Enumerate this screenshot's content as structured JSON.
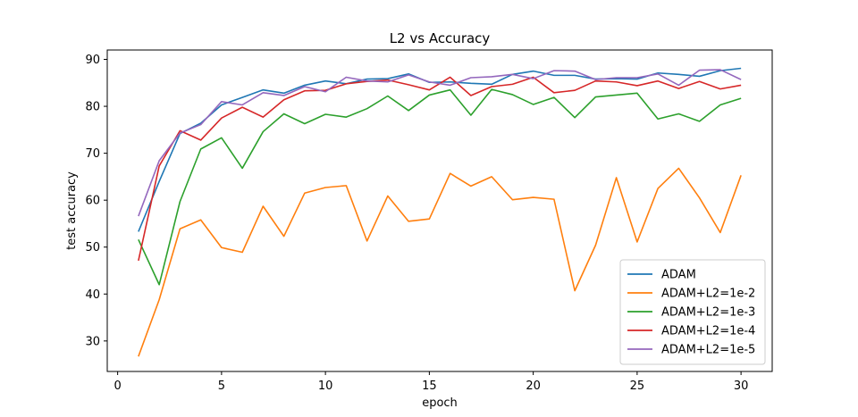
{
  "chart_data": {
    "type": "line",
    "title": "L2 vs Accuracy",
    "xlabel": "epoch",
    "ylabel": "test accuracy",
    "xlim": [
      -0.5,
      31.5
    ],
    "ylim": [
      23.5,
      92
    ],
    "xticks": [
      0,
      5,
      10,
      15,
      20,
      25,
      30
    ],
    "yticks": [
      30,
      40,
      50,
      60,
      70,
      80,
      90
    ],
    "grid": false,
    "legend_position": "lower-right",
    "x": [
      1,
      2,
      3,
      4,
      5,
      6,
      7,
      8,
      9,
      10,
      11,
      12,
      13,
      14,
      15,
      16,
      17,
      18,
      19,
      20,
      21,
      22,
      23,
      24,
      25,
      26,
      27,
      28,
      29,
      30
    ],
    "series": [
      {
        "name": "ADAM",
        "color": "#1f77b4",
        "values": [
          53.3,
          64.0,
          74.2,
          76.4,
          80.3,
          81.9,
          83.5,
          82.8,
          84.5,
          85.4,
          84.8,
          85.8,
          85.9,
          86.9,
          85.1,
          85.2,
          84.9,
          84.7,
          86.8,
          87.5,
          86.6,
          86.6,
          85.8,
          85.9,
          85.8,
          87.1,
          86.8,
          86.4,
          87.6,
          88.1
        ]
      },
      {
        "name": "ADAM+L2=1e-2",
        "color": "#ff7f0e",
        "values": [
          26.7,
          38.8,
          53.9,
          55.8,
          49.9,
          48.9,
          58.7,
          52.3,
          61.5,
          62.7,
          63.1,
          51.3,
          60.9,
          55.5,
          56.0,
          65.7,
          63.0,
          65.0,
          60.1,
          60.6,
          60.2,
          40.7,
          50.4,
          64.8,
          51.1,
          62.5,
          66.8,
          60.5,
          53.1,
          65.3
        ]
      },
      {
        "name": "ADAM+L2=1e-3",
        "color": "#2ca02c",
        "values": [
          51.6,
          42.0,
          59.7,
          70.9,
          73.3,
          66.8,
          74.6,
          78.4,
          76.3,
          78.3,
          77.7,
          79.5,
          82.2,
          79.1,
          82.4,
          83.5,
          78.1,
          83.6,
          82.5,
          80.4,
          81.9,
          77.6,
          82.0,
          82.4,
          82.8,
          77.3,
          78.4,
          76.8,
          80.3,
          81.7
        ]
      },
      {
        "name": "ADAM+L2=1e-4",
        "color": "#d62728",
        "values": [
          47.1,
          67.3,
          74.8,
          72.8,
          77.5,
          79.8,
          77.7,
          81.4,
          83.3,
          83.4,
          84.8,
          85.3,
          85.6,
          84.6,
          83.5,
          86.2,
          82.3,
          84.2,
          84.7,
          86.2,
          82.9,
          83.4,
          85.4,
          85.2,
          84.4,
          85.4,
          83.8,
          85.3,
          83.7,
          84.5
        ]
      },
      {
        "name": "ADAM+L2=1e-5",
        "color": "#9467bd",
        "values": [
          56.6,
          68.4,
          74.3,
          76.1,
          81.0,
          80.3,
          82.9,
          82.3,
          84.2,
          83.1,
          86.2,
          85.4,
          85.2,
          86.7,
          85.2,
          84.5,
          86.1,
          86.3,
          86.8,
          85.9,
          87.6,
          87.5,
          85.7,
          86.1,
          86.1,
          86.9,
          84.5,
          87.7,
          87.8,
          85.7
        ]
      }
    ]
  }
}
